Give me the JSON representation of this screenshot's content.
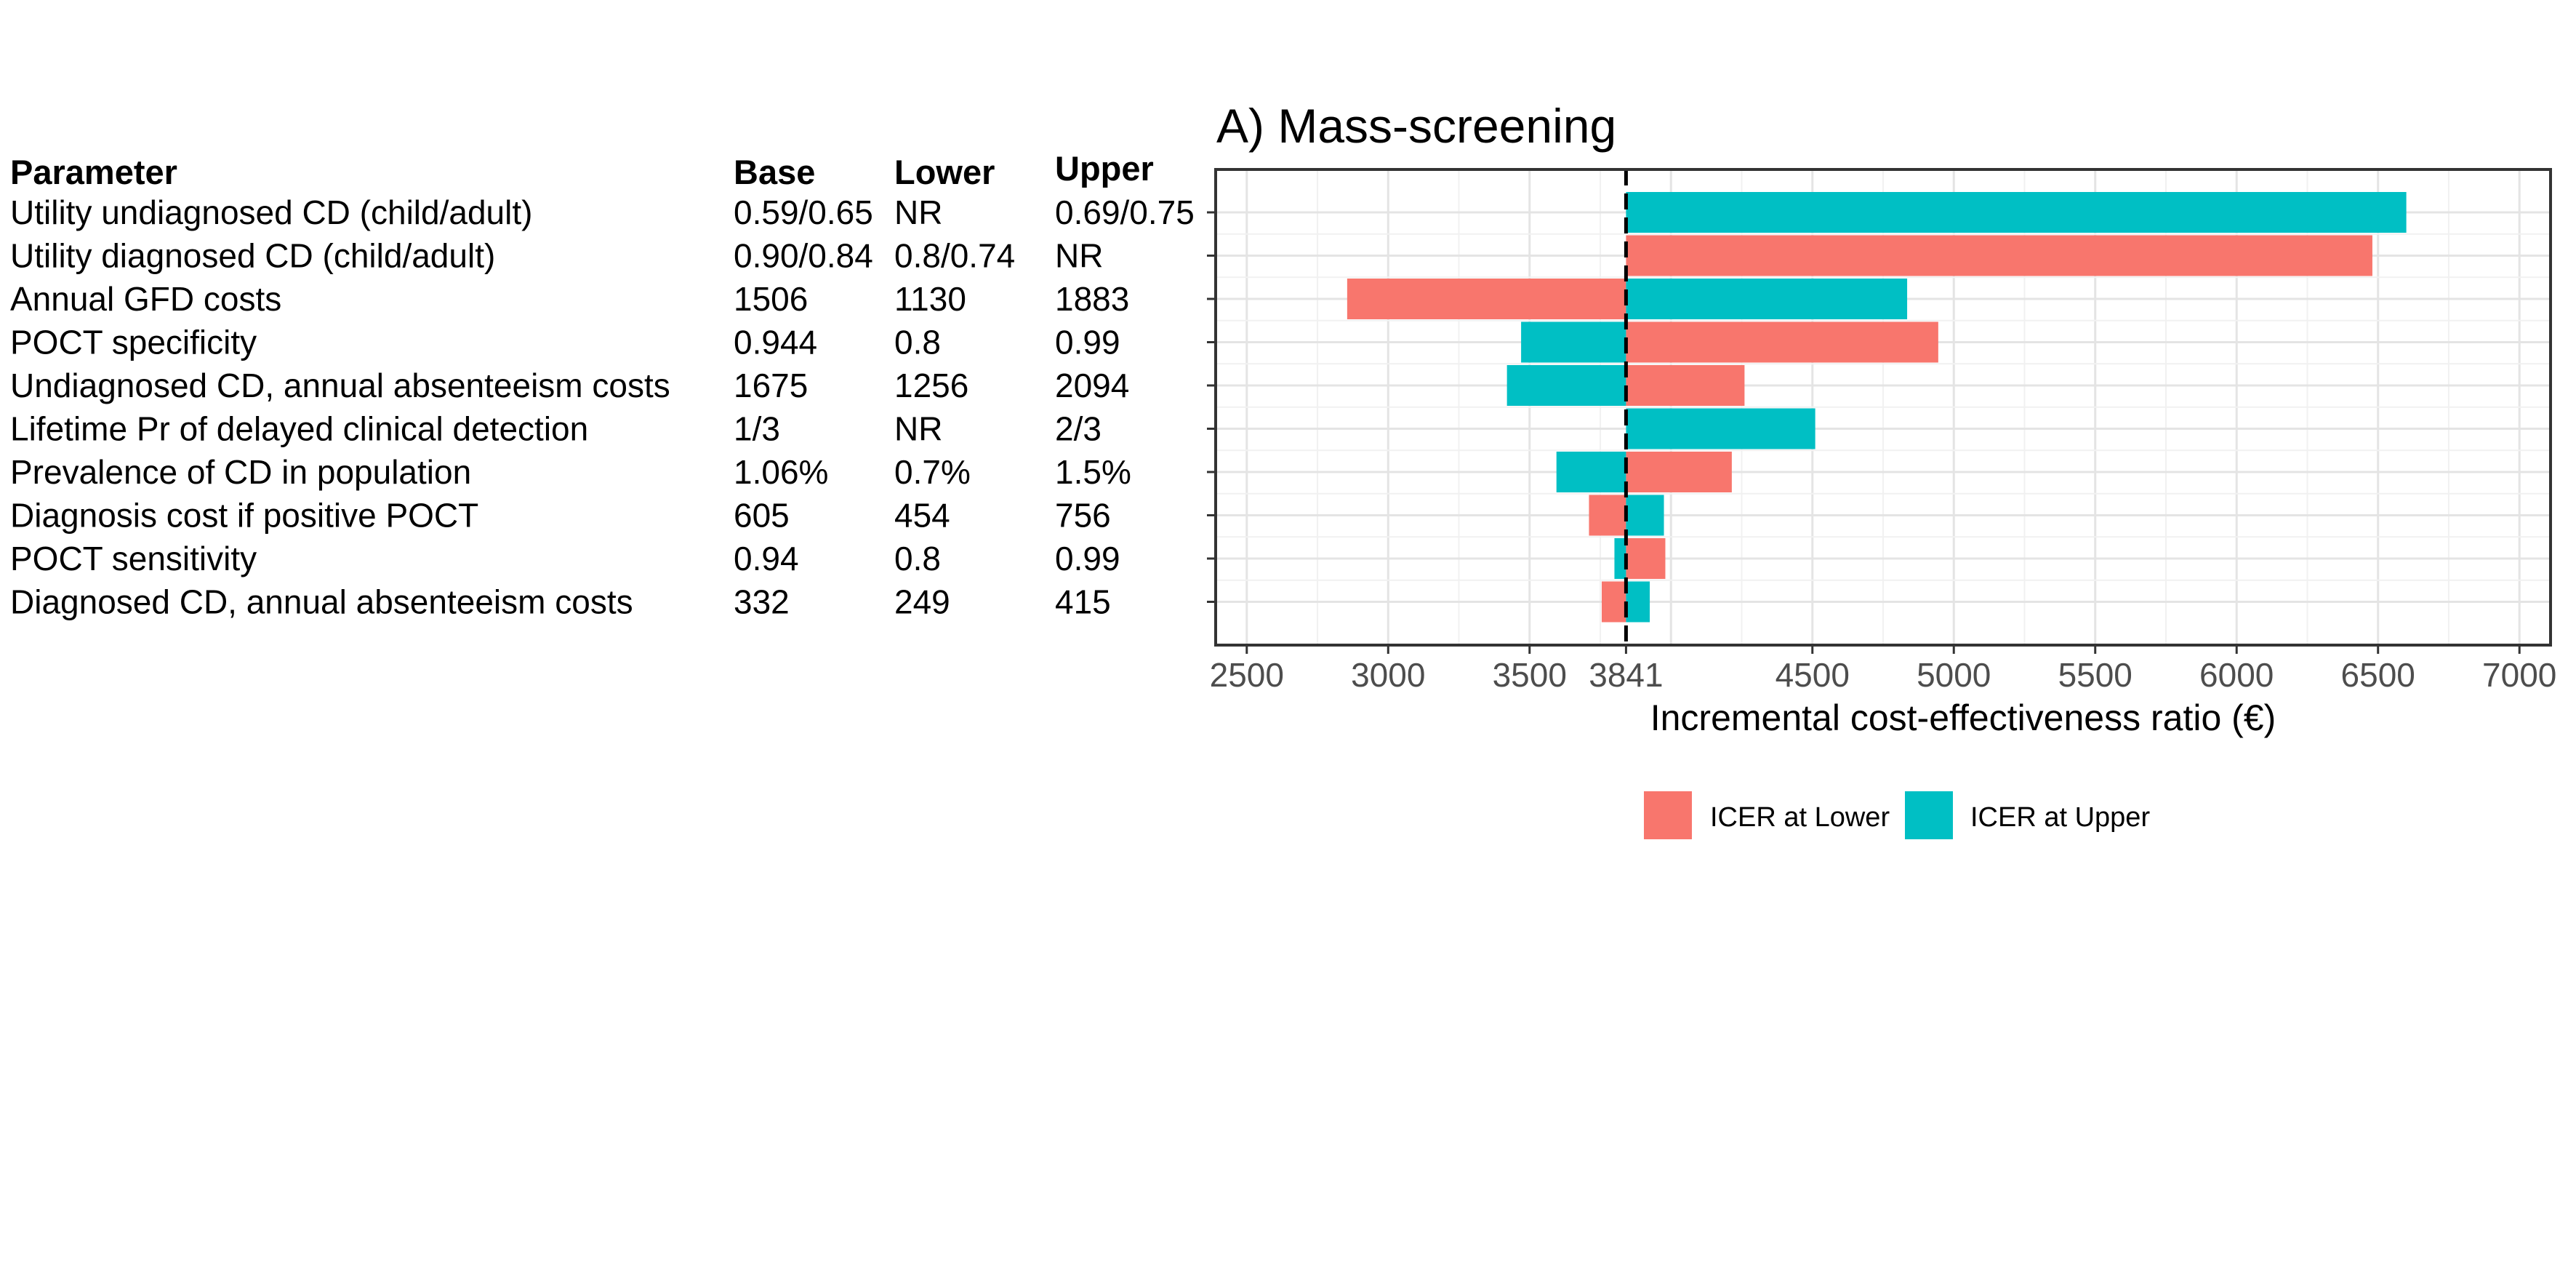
{
  "chart_data": {
    "type": "bar",
    "subtype": "tornado",
    "title": "A) Mass-screening",
    "xlabel": "Incremental cost-effectiveness ratio (€)",
    "ylabel": "",
    "baseline": 3841,
    "xlim": [
      2390,
      7110
    ],
    "x_ticks": [
      2500,
      3000,
      3500,
      3841,
      4500,
      5000,
      5500,
      6000,
      6500,
      7000
    ],
    "grid": true,
    "legend_position": "bottom",
    "table_headers": {
      "parameter": "Parameter",
      "base": "Base",
      "lower": "Lower",
      "upper": "Upper"
    },
    "rows": [
      {
        "parameter": "Utility undiagnosed CD (child/adult)",
        "base": "0.59/0.65",
        "lower": "NR",
        "upper": "0.69/0.75",
        "icer_lower": null,
        "icer_upper": 6600
      },
      {
        "parameter": "Utility diagnosed CD (child/adult)",
        "base": "0.90/0.84",
        "lower": "0.8/0.74",
        "upper": "NR",
        "icer_lower": 6480,
        "icer_upper": null
      },
      {
        "parameter": "Annual GFD costs",
        "base": "1506",
        "lower": "1130",
        "upper": "1883",
        "icer_lower": 2855,
        "icer_upper": 4835
      },
      {
        "parameter": "POCT specificity",
        "base": "0.944",
        "lower": "0.8",
        "upper": "0.99",
        "icer_lower": 4945,
        "icer_upper": 3470
      },
      {
        "parameter": "Undiagnosed CD, annual absenteeism costs",
        "base": "1675",
        "lower": "1256",
        "upper": "2094",
        "icer_lower": 4260,
        "icer_upper": 3420
      },
      {
        "parameter": "Lifetime Pr of delayed clinical detection",
        "base": "1/3",
        "lower": "NR",
        "upper": "2/3",
        "icer_lower": null,
        "icer_upper": 4510
      },
      {
        "parameter": "Prevalence of CD in population",
        "base": "1.06%",
        "lower": "0.7%",
        "upper": "1.5%",
        "icer_lower": 4215,
        "icer_upper": 3595
      },
      {
        "parameter": "Diagnosis cost if positive POCT",
        "base": "605",
        "lower": "454",
        "upper": "756",
        "icer_lower": 3710,
        "icer_upper": 3975
      },
      {
        "parameter": "POCT sensitivity",
        "base": "0.94",
        "lower": "0.8",
        "upper": "0.99",
        "icer_lower": 3980,
        "icer_upper": 3800
      },
      {
        "parameter": "Diagnosed CD, annual absenteeism costs",
        "base": "332",
        "lower": "249",
        "upper": "415",
        "icer_lower": 3755,
        "icer_upper": 3925
      }
    ],
    "series": [
      {
        "name": "ICER at Lower",
        "key": "icer_lower",
        "color": "#F8766D"
      },
      {
        "name": "ICER at Upper",
        "key": "icer_upper",
        "color": "#00BFC4"
      }
    ]
  }
}
